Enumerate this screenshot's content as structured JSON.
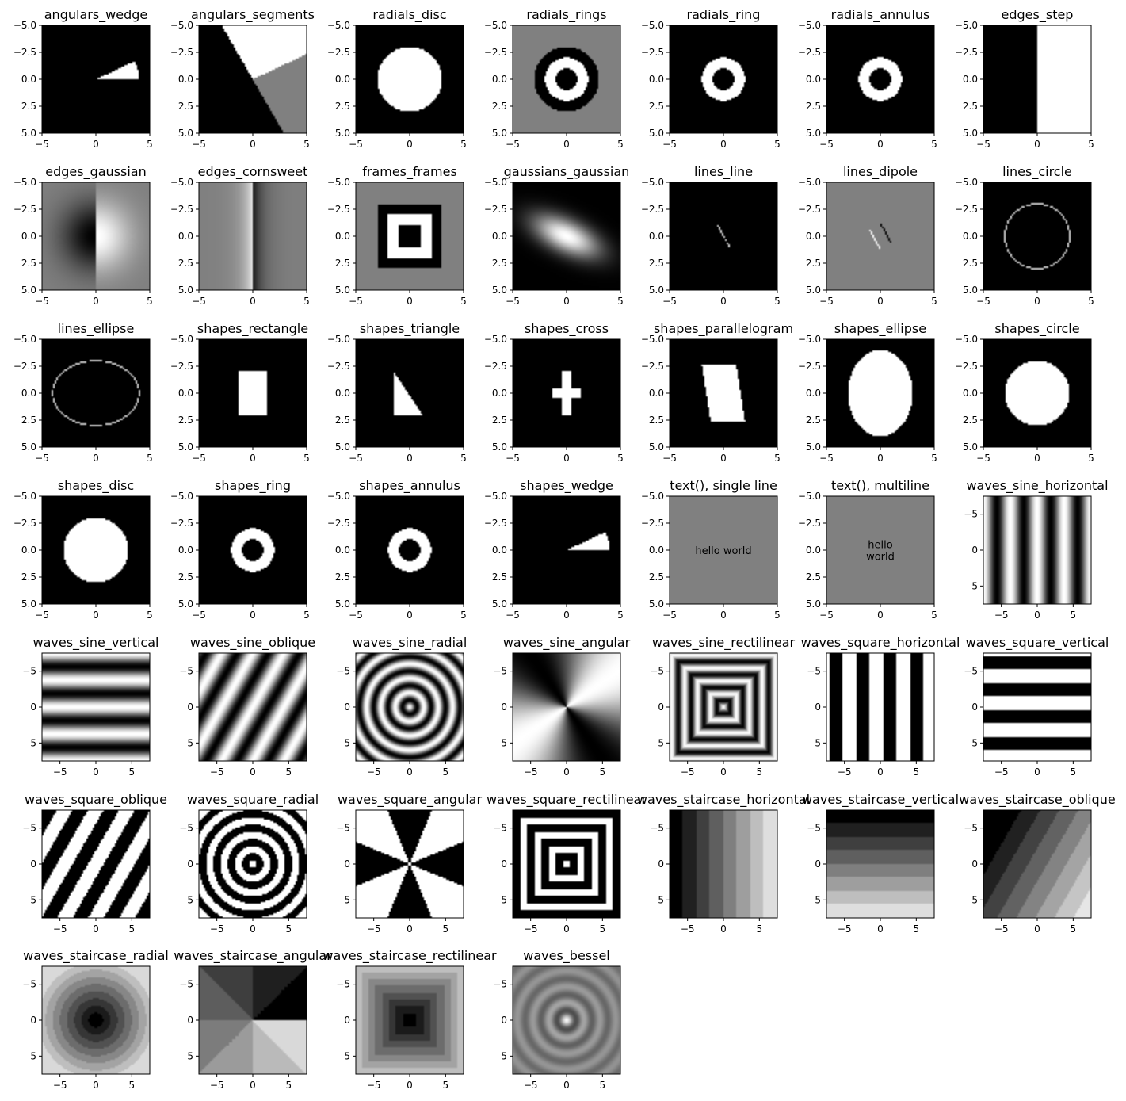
{
  "chart_data": {
    "type": "image-grid",
    "colormap": "gray",
    "extents": {
      "small": {
        "xlim": [
          -5,
          5
        ],
        "ylim": [
          5,
          -5
        ],
        "xticks": [
          "−5",
          "0",
          "5"
        ],
        "yticks": [
          "−5.0",
          "−2.5",
          "0.0",
          "2.5",
          "5.0"
        ]
      },
      "large": {
        "xlim": [
          -7.5,
          7.5
        ],
        "ylim": [
          7.5,
          -7.5
        ],
        "xticks": [
          "−5",
          "0",
          "5"
        ],
        "yticks": [
          "−5",
          "0",
          "5"
        ]
      }
    },
    "panels": [
      {
        "title": "angulars_wedge",
        "kind": "angulars_wedge",
        "extent": "small"
      },
      {
        "title": "angulars_segments",
        "kind": "angulars_segments",
        "extent": "small"
      },
      {
        "title": "radials_disc",
        "kind": "radials_disc",
        "extent": "small"
      },
      {
        "title": "radials_rings",
        "kind": "radials_rings",
        "extent": "small"
      },
      {
        "title": "radials_ring",
        "kind": "radials_ring",
        "extent": "small"
      },
      {
        "title": "radials_annulus",
        "kind": "radials_ring",
        "extent": "small"
      },
      {
        "title": "edges_step",
        "kind": "edges_step",
        "extent": "small"
      },
      {
        "title": "edges_gaussian",
        "kind": "edges_gaussian",
        "extent": "small"
      },
      {
        "title": "edges_cornsweet",
        "kind": "edges_cornsweet",
        "extent": "small"
      },
      {
        "title": "frames_frames",
        "kind": "frames_frames",
        "extent": "small"
      },
      {
        "title": "gaussians_gaussian",
        "kind": "gaussians_gaussian",
        "extent": "small"
      },
      {
        "title": "lines_line",
        "kind": "lines_line",
        "extent": "small"
      },
      {
        "title": "lines_dipole",
        "kind": "lines_dipole",
        "extent": "small"
      },
      {
        "title": "lines_circle",
        "kind": "lines_circle",
        "extent": "small"
      },
      {
        "title": "lines_ellipse",
        "kind": "lines_ellipse",
        "extent": "small"
      },
      {
        "title": "shapes_rectangle",
        "kind": "shapes_rectangle",
        "extent": "small"
      },
      {
        "title": "shapes_triangle",
        "kind": "shapes_triangle",
        "extent": "small"
      },
      {
        "title": "shapes_cross",
        "kind": "shapes_cross",
        "extent": "small"
      },
      {
        "title": "shapes_parallelogram",
        "kind": "shapes_parallelogram",
        "extent": "small"
      },
      {
        "title": "shapes_ellipse",
        "kind": "shapes_ellipse",
        "extent": "small"
      },
      {
        "title": "shapes_circle",
        "kind": "shapes_circle",
        "extent": "small"
      },
      {
        "title": "shapes_disc",
        "kind": "shapes_circle",
        "extent": "small"
      },
      {
        "title": "shapes_ring",
        "kind": "shapes_ring",
        "extent": "small"
      },
      {
        "title": "shapes_annulus",
        "kind": "shapes_ring",
        "extent": "small"
      },
      {
        "title": "shapes_wedge",
        "kind": "shapes_wedge",
        "extent": "small"
      },
      {
        "title": "text(), single line",
        "kind": "text",
        "extent": "small",
        "text_lines": [
          "hello world"
        ]
      },
      {
        "title": "text(), multiline",
        "kind": "text",
        "extent": "small",
        "text_lines": [
          "hello",
          "world"
        ]
      },
      {
        "title": "waves_sine_horizontal",
        "kind": "sine_h",
        "extent": "large"
      },
      {
        "title": "waves_sine_vertical",
        "kind": "sine_v",
        "extent": "large"
      },
      {
        "title": "waves_sine_oblique",
        "kind": "sine_ob",
        "extent": "large"
      },
      {
        "title": "waves_sine_radial",
        "kind": "sine_rad",
        "extent": "large"
      },
      {
        "title": "waves_sine_angular",
        "kind": "sine_ang",
        "extent": "large"
      },
      {
        "title": "waves_sine_rectilinear",
        "kind": "sine_rect",
        "extent": "large"
      },
      {
        "title": "waves_square_horizontal",
        "kind": "sq_h",
        "extent": "large"
      },
      {
        "title": "waves_square_vertical",
        "kind": "sq_v",
        "extent": "large"
      },
      {
        "title": "waves_square_oblique",
        "kind": "sq_ob",
        "extent": "large"
      },
      {
        "title": "waves_square_radial",
        "kind": "sq_rad",
        "extent": "large"
      },
      {
        "title": "waves_square_angular",
        "kind": "sq_ang",
        "extent": "large"
      },
      {
        "title": "waves_square_rectilinear",
        "kind": "sq_rect",
        "extent": "large"
      },
      {
        "title": "waves_staircase_horizontal",
        "kind": "st_h",
        "extent": "large"
      },
      {
        "title": "waves_staircase_vertical",
        "kind": "st_v",
        "extent": "large"
      },
      {
        "title": "waves_staircase_oblique",
        "kind": "st_ob",
        "extent": "large"
      },
      {
        "title": "waves_staircase_radial",
        "kind": "st_rad",
        "extent": "large"
      },
      {
        "title": "waves_staircase_angular",
        "kind": "st_ang",
        "extent": "large"
      },
      {
        "title": "waves_staircase_rectilinear",
        "kind": "st_rect",
        "extent": "large"
      },
      {
        "title": "waves_bessel",
        "kind": "bessel",
        "extent": "large"
      }
    ]
  }
}
